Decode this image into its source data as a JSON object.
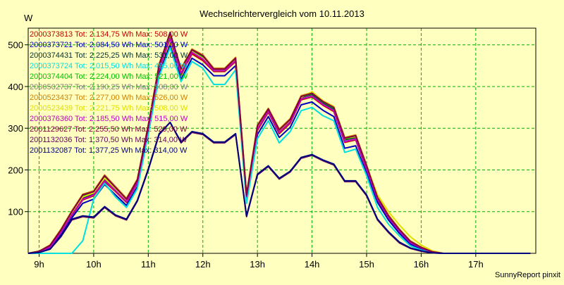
{
  "chart_data": {
    "type": "line",
    "title": "Wechselrichtervergleich vom 10.11.2013",
    "ylabel": "W",
    "xlabel": "",
    "footer": "SunnyReport pinxit",
    "ylim": [
      0,
      540
    ],
    "xlim": [
      8.8,
      18.1
    ],
    "xticks": [
      9,
      10,
      11,
      12,
      13,
      14,
      15,
      16,
      17
    ],
    "xtick_labels": [
      "9h",
      "10h",
      "11h",
      "12h",
      "13h",
      "14h",
      "15h",
      "16h",
      "17h"
    ],
    "yticks": [
      100,
      200,
      300,
      400,
      500
    ],
    "ytick_labels": [
      "100",
      "200",
      "300",
      "400",
      "500"
    ],
    "grid": true,
    "legend_position": "top-left",
    "x": [
      8.8,
      9.0,
      9.2,
      9.4,
      9.6,
      9.8,
      10.0,
      10.2,
      10.4,
      10.6,
      10.8,
      11.0,
      11.2,
      11.4,
      11.6,
      11.8,
      12.0,
      12.2,
      12.4,
      12.6,
      12.8,
      13.0,
      13.2,
      13.4,
      13.6,
      13.8,
      14.0,
      14.2,
      14.4,
      14.6,
      14.8,
      15.0,
      15.2,
      15.4,
      15.6,
      15.8,
      16.0,
      16.2,
      16.4,
      16.6,
      16.8,
      17.0,
      17.2,
      17.4,
      17.6,
      17.8,
      18.0
    ],
    "series": [
      {
        "name": "2000373813 Tot: 2.134,75 Wh Max: 508,00 W",
        "color": "#c00000",
        "values": [
          0,
          3,
          14,
          48,
          90,
          128,
          138,
          172,
          148,
          122,
          168,
          298,
          440,
          505,
          428,
          478,
          462,
          436,
          436,
          460,
          135,
          295,
          338,
          287,
          312,
          368,
          375,
          355,
          340,
          266,
          272,
          200,
          128,
          85,
          52,
          25,
          12,
          3,
          0,
          0,
          0,
          0,
          0,
          0,
          0,
          0,
          0
        ]
      },
      {
        "name": "2000373721 Tot: 2.084,50 Wh Max: 501,00 W",
        "color": "#0000c0",
        "values": [
          0,
          2,
          12,
          45,
          85,
          120,
          130,
          165,
          140,
          115,
          160,
          290,
          430,
          498,
          418,
          468,
          452,
          426,
          426,
          450,
          128,
          285,
          328,
          278,
          302,
          356,
          363,
          343,
          328,
          252,
          258,
          192,
          122,
          80,
          48,
          22,
          10,
          2,
          0,
          0,
          0,
          0,
          0,
          0,
          0,
          0,
          0
        ]
      },
      {
        "name": "2000374431 Tot: 2.225,25 Wh Max: 531,00 W",
        "color": "#003030",
        "values": [
          0,
          4,
          16,
          52,
          95,
          132,
          142,
          176,
          152,
          126,
          172,
          302,
          448,
          530,
          434,
          486,
          470,
          440,
          440,
          466,
          138,
          300,
          344,
          292,
          318,
          374,
          381,
          361,
          346,
          272,
          278,
          206,
          132,
          88,
          55,
          28,
          14,
          4,
          0,
          0,
          0,
          0,
          0,
          0,
          0,
          0,
          0
        ]
      },
      {
        "name": "2000373724 Tot: 2.015,50 Wh Max: 495,00 W",
        "color": "#00e0e0",
        "values": [
          0,
          0,
          0,
          0,
          0,
          30,
          130,
          168,
          135,
          110,
          155,
          285,
          425,
          493,
          412,
          460,
          444,
          405,
          405,
          440,
          120,
          275,
          318,
          265,
          292,
          342,
          350,
          330,
          318,
          242,
          250,
          186,
          110,
          70,
          42,
          18,
          8,
          2,
          0,
          0,
          0,
          0,
          0,
          0,
          0,
          0,
          0
        ]
      },
      {
        "name": "2000374404 Tot: 2.224,00 Wh Max: 521,00 W",
        "color": "#00c000",
        "values": [
          0,
          5,
          18,
          55,
          98,
          138,
          148,
          185,
          158,
          128,
          175,
          305,
          450,
          520,
          440,
          488,
          472,
          442,
          442,
          468,
          140,
          305,
          345,
          295,
          320,
          375,
          383,
          363,
          348,
          274,
          280,
          208,
          133,
          89,
          56,
          29,
          14,
          4,
          0,
          0,
          0,
          0,
          0,
          0,
          0,
          0,
          0
        ]
      },
      {
        "name": "2000502737 Tot: 2.190,25 Wh Max: 508,00 W",
        "color": "#808080",
        "values": [
          0,
          4,
          15,
          50,
          92,
          130,
          140,
          174,
          150,
          124,
          170,
          300,
          444,
          508,
          432,
          482,
          466,
          438,
          438,
          462,
          136,
          298,
          340,
          290,
          315,
          370,
          377,
          357,
          342,
          268,
          274,
          202,
          130,
          86,
          53,
          26,
          13,
          3,
          0,
          0,
          0,
          0,
          0,
          0,
          0,
          0,
          0
        ]
      },
      {
        "name": "2000523437 Tot: 2.277,00 Wh Max: 526,00 W",
        "color": "#d08000",
        "values": [
          0,
          5,
          20,
          58,
          102,
          142,
          150,
          188,
          160,
          132,
          178,
          308,
          455,
          526,
          444,
          490,
          476,
          444,
          444,
          470,
          142,
          308,
          348,
          298,
          323,
          378,
          386,
          366,
          352,
          278,
          284,
          212,
          136,
          92,
          58,
          30,
          15,
          5,
          0,
          0,
          0,
          0,
          0,
          0,
          0,
          0,
          0
        ]
      },
      {
        "name": "2000523439 Tot: 2.221,75 Wh Max: 508,00 W",
        "color": "#e0e000",
        "values": [
          0,
          4,
          17,
          53,
          96,
          135,
          145,
          180,
          155,
          128,
          174,
          304,
          447,
          508,
          436,
          484,
          468,
          440,
          440,
          464,
          138,
          302,
          342,
          292,
          317,
          374,
          388,
          366,
          352,
          276,
          280,
          210,
          140,
          100,
          68,
          40,
          20,
          6,
          0,
          0,
          0,
          0,
          0,
          0,
          0,
          0,
          0
        ]
      },
      {
        "name": "2000376360 Tot: 2.185,50 Wh Max: 515,00 W",
        "color": "#c000c0",
        "values": [
          0,
          4,
          15,
          50,
          92,
          130,
          140,
          174,
          150,
          124,
          170,
          300,
          444,
          515,
          432,
          482,
          466,
          438,
          438,
          462,
          136,
          298,
          340,
          290,
          315,
          370,
          377,
          357,
          342,
          268,
          274,
          202,
          130,
          86,
          53,
          26,
          13,
          3,
          0,
          0,
          0,
          0,
          0,
          0,
          0,
          0,
          0
        ]
      },
      {
        "name": "2001129627 Tot: 2.255,50 Wh Max: 529,00 W",
        "color": "#800040",
        "values": [
          0,
          5,
          19,
          56,
          100,
          140,
          148,
          186,
          158,
          130,
          176,
          306,
          452,
          529,
          442,
          488,
          474,
          442,
          442,
          468,
          140,
          306,
          346,
          296,
          321,
          376,
          384,
          364,
          350,
          276,
          282,
          210,
          134,
          90,
          57,
          29,
          14,
          4,
          0,
          0,
          0,
          0,
          0,
          0,
          0,
          0,
          0
        ]
      },
      {
        "name": "2001132036 Tot: 1.370,50 Wh Max: 314,00 W",
        "color": "#600060",
        "values": [
          0,
          2,
          10,
          40,
          80,
          88,
          85,
          110,
          90,
          80,
          125,
          200,
          285,
          314,
          265,
          290,
          285,
          265,
          265,
          285,
          88,
          188,
          208,
          178,
          195,
          228,
          235,
          222,
          212,
          172,
          172,
          138,
          80,
          50,
          25,
          12,
          5,
          1,
          0,
          0,
          0,
          0,
          0,
          0,
          0,
          0,
          0
        ]
      },
      {
        "name": "2001132087 Tot: 1.377,25 Wh Max: 314,00 W",
        "color": "#000080",
        "values": [
          0,
          2,
          10,
          42,
          82,
          90,
          87,
          112,
          92,
          82,
          127,
          202,
          287,
          314,
          267,
          292,
          287,
          267,
          267,
          287,
          90,
          190,
          210,
          180,
          197,
          230,
          237,
          224,
          214,
          174,
          174,
          140,
          82,
          52,
          27,
          13,
          6,
          1,
          0,
          0,
          0,
          0,
          0,
          0,
          0,
          0,
          0
        ]
      }
    ]
  }
}
